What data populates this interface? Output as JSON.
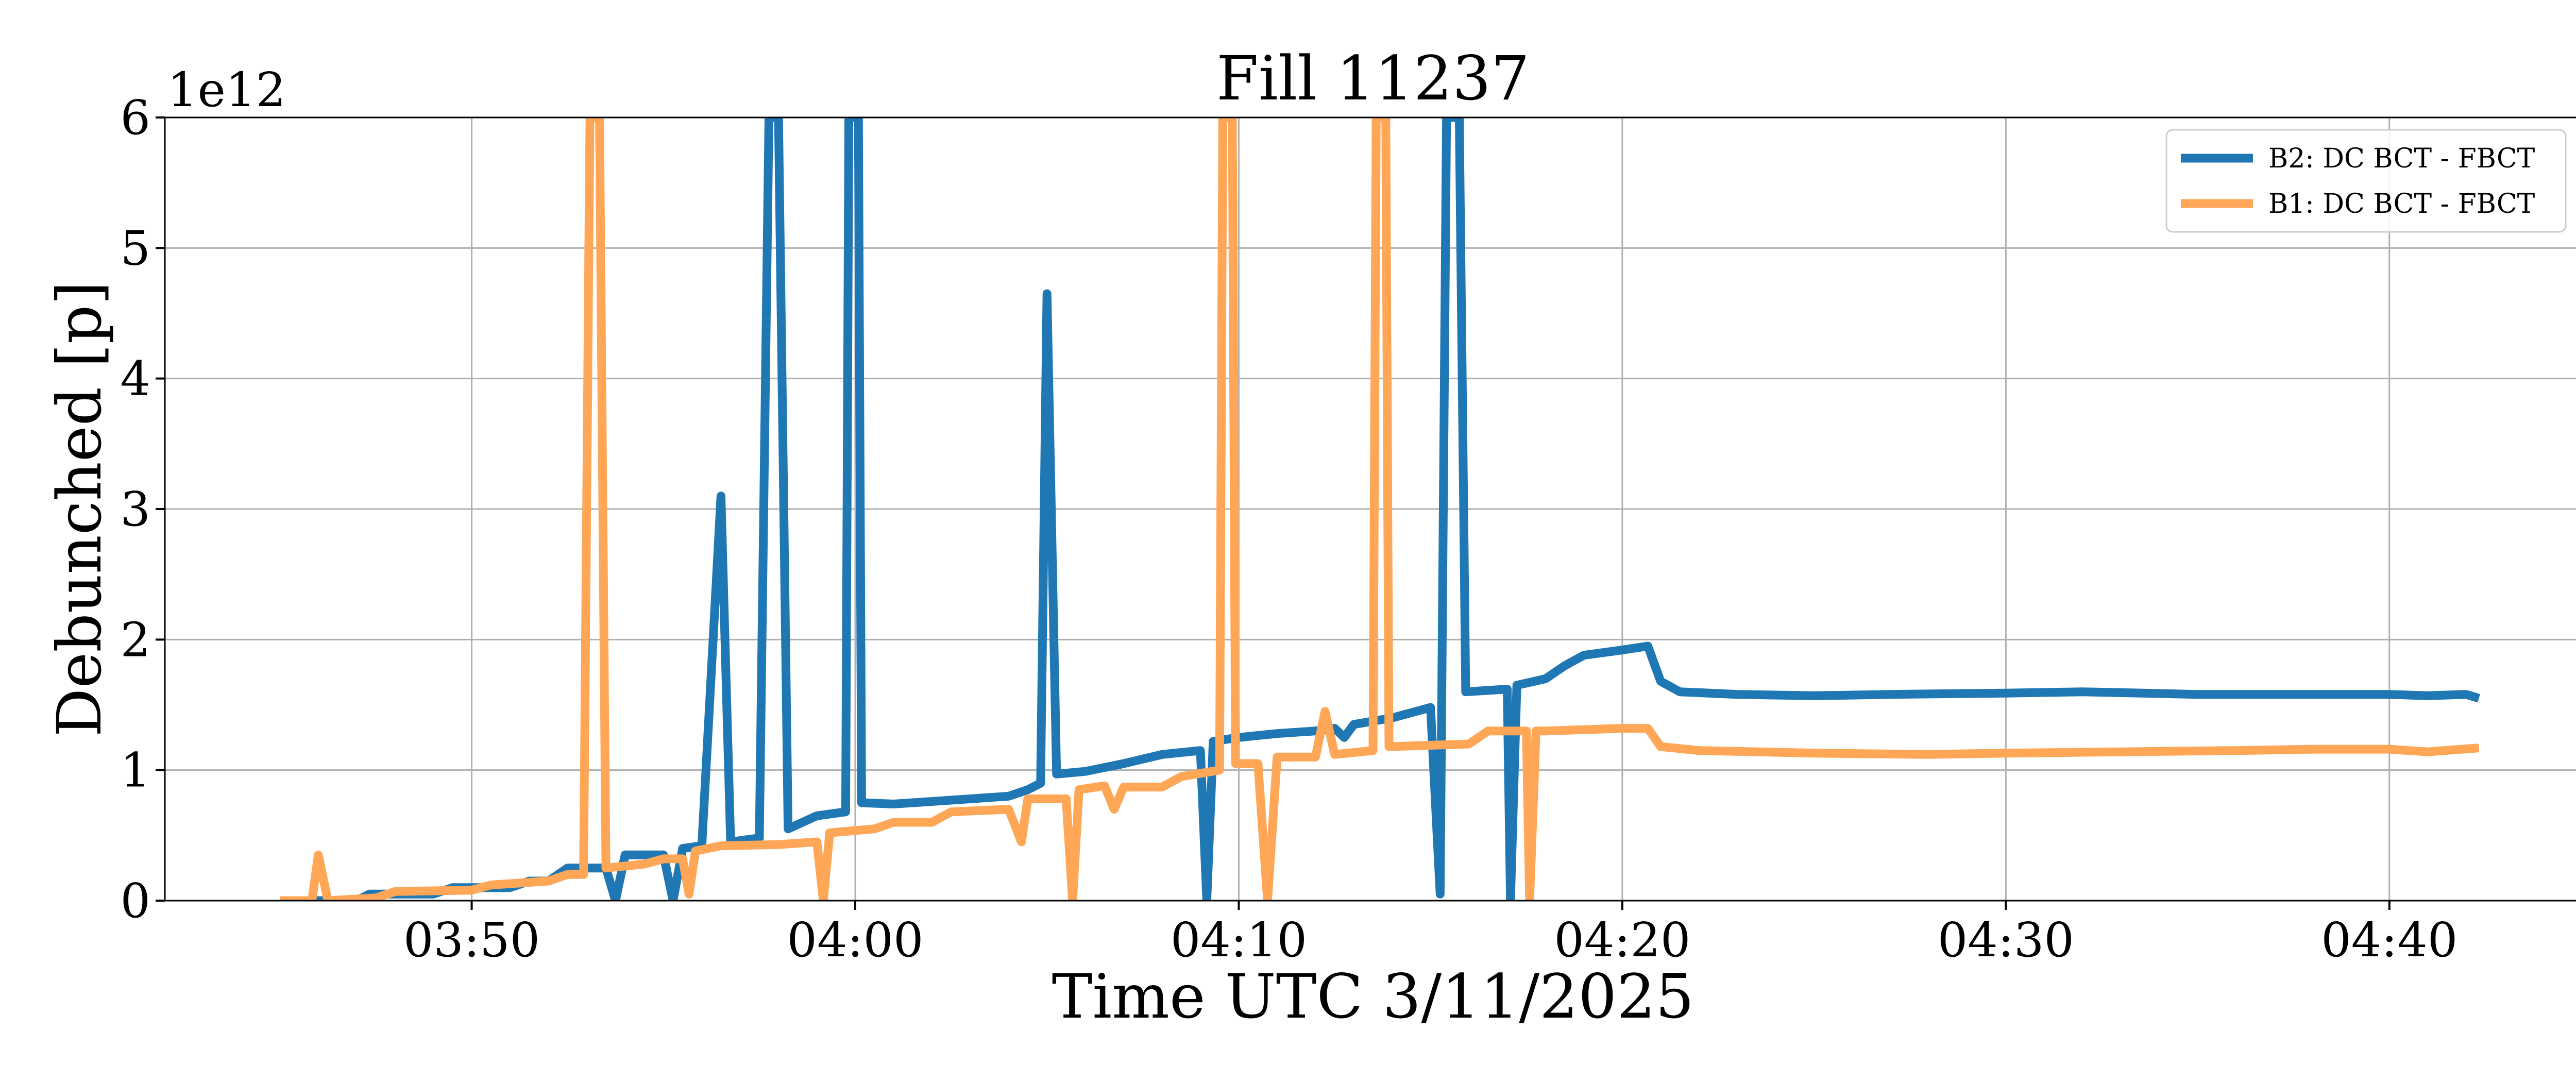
{
  "chart_data": {
    "type": "line",
    "title": "Fill 11237",
    "xlabel": "Time UTC 3/11/2025",
    "ylabel": "Debunched [p]",
    "y_offset_label": "1e12",
    "x_time_range": [
      "03:42",
      "04:45"
    ],
    "x_ticks": [
      "03:50",
      "04:00",
      "04:10",
      "04:20",
      "04:30",
      "04:40"
    ],
    "ylim": [
      0,
      6
    ],
    "y_ticks": [
      "0",
      "1",
      "2",
      "3",
      "4",
      "5",
      "6"
    ],
    "grid": true,
    "legend_position": "top-right",
    "series": [
      {
        "name": "B2: DC BCT - FBCT",
        "color": "#1f77b4",
        "points": [
          [
            "03:45:00",
            0
          ],
          [
            "03:47:00",
            0
          ],
          [
            "03:47:20",
            0.05
          ],
          [
            "03:49:00",
            0.05
          ],
          [
            "03:49:30",
            0.1
          ],
          [
            "03:51:00",
            0.1
          ],
          [
            "03:51:30",
            0.15
          ],
          [
            "03:52:00",
            0.15
          ],
          [
            "03:52:30",
            0.25
          ],
          [
            "03:53:30",
            0.25
          ],
          [
            "03:53:45",
            0
          ],
          [
            "03:54:00",
            0.35
          ],
          [
            "03:55:00",
            0.35
          ],
          [
            "03:55:15",
            0
          ],
          [
            "03:55:30",
            0.4
          ],
          [
            "03:56:00",
            0.42
          ],
          [
            "03:56:30",
            3.1
          ],
          [
            "03:56:45",
            0.45
          ],
          [
            "03:57:30",
            0.48
          ],
          [
            "03:57:45",
            6
          ],
          [
            "03:58:00",
            6
          ],
          [
            "03:58:15",
            0.55
          ],
          [
            "03:59:00",
            0.65
          ],
          [
            "03:59:45",
            0.68
          ],
          [
            "03:59:50",
            6
          ],
          [
            "04:00:05",
            6
          ],
          [
            "04:00:10",
            0.75
          ],
          [
            "04:01:00",
            0.74
          ],
          [
            "04:02:00",
            0.76
          ],
          [
            "04:04:00",
            0.8
          ],
          [
            "04:04:30",
            0.85
          ],
          [
            "04:04:50",
            0.9
          ],
          [
            "04:05:00",
            4.65
          ],
          [
            "04:05:15",
            0.97
          ],
          [
            "04:06:00",
            0.99
          ],
          [
            "04:07:00",
            1.05
          ],
          [
            "04:08:00",
            1.12
          ],
          [
            "04:09:00",
            1.15
          ],
          [
            "04:09:10",
            0
          ],
          [
            "04:09:20",
            1.22
          ],
          [
            "04:10:00",
            1.25
          ],
          [
            "04:11:00",
            1.28
          ],
          [
            "04:12:00",
            1.3
          ],
          [
            "04:12:30",
            1.32
          ],
          [
            "04:12:45",
            1.25
          ],
          [
            "04:13:00",
            1.35
          ],
          [
            "04:14:00",
            1.4
          ],
          [
            "04:15:00",
            1.48
          ],
          [
            "04:15:15",
            0.05
          ],
          [
            "04:15:25",
            6
          ],
          [
            "04:15:45",
            6
          ],
          [
            "04:15:55",
            1.6
          ],
          [
            "04:17:00",
            1.62
          ],
          [
            "04:17:05",
            0
          ],
          [
            "04:17:15",
            1.65
          ],
          [
            "04:18:00",
            1.7
          ],
          [
            "04:18:30",
            1.8
          ],
          [
            "04:19:00",
            1.88
          ],
          [
            "04:20:00",
            1.92
          ],
          [
            "04:20:40",
            1.95
          ],
          [
            "04:21:00",
            1.68
          ],
          [
            "04:21:30",
            1.6
          ],
          [
            "04:23:00",
            1.58
          ],
          [
            "04:25:00",
            1.57
          ],
          [
            "04:27:00",
            1.58
          ],
          [
            "04:30:00",
            1.59
          ],
          [
            "04:32:00",
            1.6
          ],
          [
            "04:35:00",
            1.58
          ],
          [
            "04:38:00",
            1.58
          ],
          [
            "04:40:00",
            1.58
          ],
          [
            "04:41:00",
            1.57
          ],
          [
            "04:42:00",
            1.58
          ],
          [
            "04:42:20",
            1.55
          ]
        ]
      },
      {
        "name": "B1: DC BCT - FBCT",
        "color": "#ffa657",
        "points": [
          [
            "03:45:00",
            0
          ],
          [
            "03:45:50",
            0
          ],
          [
            "03:46:00",
            0.35
          ],
          [
            "03:46:15",
            0
          ],
          [
            "03:47:30",
            0.02
          ],
          [
            "03:48:00",
            0.07
          ],
          [
            "03:50:00",
            0.08
          ],
          [
            "03:50:30",
            0.12
          ],
          [
            "03:52:00",
            0.15
          ],
          [
            "03:52:30",
            0.2
          ],
          [
            "03:52:55",
            0.2
          ],
          [
            "03:53:05",
            6
          ],
          [
            "03:53:20",
            6
          ],
          [
            "03:53:30",
            0.25
          ],
          [
            "03:54:30",
            0.28
          ],
          [
            "03:55:00",
            0.32
          ],
          [
            "03:55:30",
            0.32
          ],
          [
            "03:55:40",
            0.05
          ],
          [
            "03:55:50",
            0.38
          ],
          [
            "03:56:30",
            0.42
          ],
          [
            "03:58:00",
            0.43
          ],
          [
            "03:59:00",
            0.45
          ],
          [
            "03:59:10",
            0
          ],
          [
            "03:59:20",
            0.52
          ],
          [
            "04:00:30",
            0.55
          ],
          [
            "04:01:00",
            0.6
          ],
          [
            "04:02:00",
            0.6
          ],
          [
            "04:02:30",
            0.68
          ],
          [
            "04:04:00",
            0.7
          ],
          [
            "04:04:20",
            0.45
          ],
          [
            "04:04:30",
            0.78
          ],
          [
            "04:05:30",
            0.78
          ],
          [
            "04:05:40",
            0
          ],
          [
            "04:05:50",
            0.85
          ],
          [
            "04:06:30",
            0.88
          ],
          [
            "04:06:45",
            0.7
          ],
          [
            "04:07:00",
            0.87
          ],
          [
            "04:08:00",
            0.87
          ],
          [
            "04:08:30",
            0.95
          ],
          [
            "04:09:30",
            1.0
          ],
          [
            "04:09:35",
            6
          ],
          [
            "04:09:50",
            6
          ],
          [
            "04:09:55",
            1.05
          ],
          [
            "04:10:30",
            1.05
          ],
          [
            "04:10:45",
            0
          ],
          [
            "04:11:00",
            1.1
          ],
          [
            "04:12:00",
            1.1
          ],
          [
            "04:12:15",
            1.45
          ],
          [
            "04:12:30",
            1.12
          ],
          [
            "04:13:30",
            1.15
          ],
          [
            "04:13:35",
            6
          ],
          [
            "04:13:50",
            6
          ],
          [
            "04:13:55",
            1.18
          ],
          [
            "04:16:00",
            1.2
          ],
          [
            "04:16:30",
            1.3
          ],
          [
            "04:17:30",
            1.3
          ],
          [
            "04:17:35",
            0
          ],
          [
            "04:17:45",
            1.3
          ],
          [
            "04:18:00",
            1.3
          ],
          [
            "04:20:00",
            1.32
          ],
          [
            "04:20:40",
            1.32
          ],
          [
            "04:21:00",
            1.18
          ],
          [
            "04:22:00",
            1.15
          ],
          [
            "04:25:00",
            1.13
          ],
          [
            "04:28:00",
            1.12
          ],
          [
            "04:30:00",
            1.13
          ],
          [
            "04:33:00",
            1.14
          ],
          [
            "04:36:00",
            1.15
          ],
          [
            "04:38:00",
            1.16
          ],
          [
            "04:40:00",
            1.16
          ],
          [
            "04:41:00",
            1.14
          ],
          [
            "04:42:20",
            1.17
          ]
        ]
      }
    ]
  }
}
